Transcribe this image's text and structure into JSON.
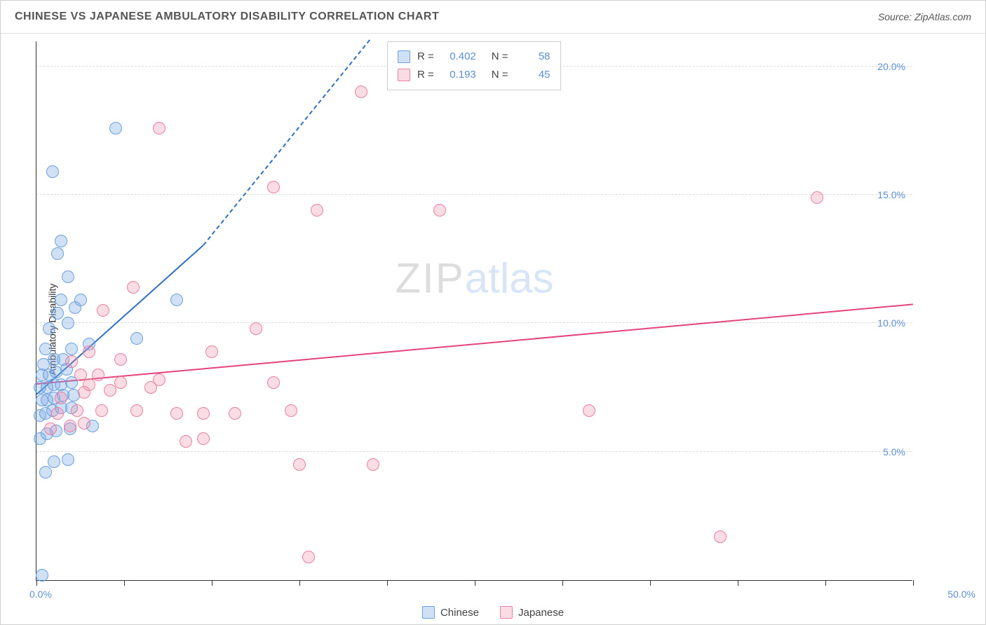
{
  "title": "CHINESE VS JAPANESE AMBULATORY DISABILITY CORRELATION CHART",
  "source": "Source: ZipAtlas.com",
  "ylabel": "Ambulatory Disability",
  "watermark": {
    "part1": "ZIP",
    "part2": "atlas"
  },
  "chart": {
    "type": "scatter",
    "xlim": [
      0,
      50
    ],
    "ylim": [
      0,
      21
    ],
    "yticks": [
      5,
      10,
      15,
      20
    ],
    "ytick_labels": [
      "5.0%",
      "10.0%",
      "15.0%",
      "20.0%"
    ],
    "xticks": [
      0,
      5,
      10,
      15,
      20,
      25,
      30,
      35,
      40,
      45,
      50
    ],
    "xlabel_first": "0.0%",
    "xlabel_last": "50.0%",
    "background_color": "#ffffff",
    "grid_color": "#dddddd",
    "axis_color": "#333333",
    "tick_label_color": "#5b8fd6",
    "point_radius": 9,
    "series": [
      {
        "name": "Chinese",
        "fill_color": "rgba(120,170,230,0.35)",
        "stroke_color": "#6aa0dd",
        "trend_color": "#2f6fc4",
        "trend": {
          "x1": 0,
          "y1": 7.2,
          "x2": 9.5,
          "y2": 13.0,
          "dash_continue_to": {
            "x": 19,
            "y": 21
          }
        },
        "R": "0.402",
        "N": "58",
        "points": [
          [
            0.3,
            0.2
          ],
          [
            0.5,
            4.2
          ],
          [
            1.0,
            4.6
          ],
          [
            1.8,
            4.7
          ],
          [
            0.2,
            5.5
          ],
          [
            0.6,
            5.7
          ],
          [
            1.1,
            5.8
          ],
          [
            1.9,
            5.9
          ],
          [
            3.2,
            6.0
          ],
          [
            0.2,
            6.4
          ],
          [
            0.5,
            6.5
          ],
          [
            0.9,
            6.6
          ],
          [
            1.4,
            6.7
          ],
          [
            2.0,
            6.7
          ],
          [
            0.3,
            7.0
          ],
          [
            0.6,
            7.0
          ],
          [
            1.0,
            7.1
          ],
          [
            1.5,
            7.2
          ],
          [
            2.1,
            7.2
          ],
          [
            0.2,
            7.5
          ],
          [
            0.6,
            7.5
          ],
          [
            1.0,
            7.6
          ],
          [
            1.4,
            7.6
          ],
          [
            2.0,
            7.7
          ],
          [
            0.3,
            8.0
          ],
          [
            0.7,
            8.0
          ],
          [
            1.1,
            8.1
          ],
          [
            1.7,
            8.2
          ],
          [
            0.4,
            8.4
          ],
          [
            1.0,
            8.6
          ],
          [
            1.5,
            8.6
          ],
          [
            0.5,
            9.0
          ],
          [
            2.0,
            9.0
          ],
          [
            3.0,
            9.2
          ],
          [
            0.7,
            9.8
          ],
          [
            1.8,
            10.0
          ],
          [
            5.7,
            9.4
          ],
          [
            1.2,
            10.4
          ],
          [
            2.2,
            10.6
          ],
          [
            1.4,
            10.9
          ],
          [
            2.5,
            10.9
          ],
          [
            8.0,
            10.9
          ],
          [
            1.8,
            11.8
          ],
          [
            1.2,
            12.7
          ],
          [
            1.4,
            13.2
          ],
          [
            0.9,
            15.9
          ],
          [
            4.5,
            17.6
          ]
        ]
      },
      {
        "name": "Japanese",
        "fill_color": "rgba(240,140,170,0.30)",
        "stroke_color": "#e87fa2",
        "trend_color": "#e4447a",
        "trend": {
          "x1": 0,
          "y1": 7.6,
          "x2": 50,
          "y2": 10.7
        },
        "R": "0.193",
        "N": "45",
        "points": [
          [
            15.5,
            0.9
          ],
          [
            39.0,
            1.7
          ],
          [
            15.0,
            4.5
          ],
          [
            19.2,
            4.5
          ],
          [
            8.5,
            5.4
          ],
          [
            9.5,
            5.5
          ],
          [
            0.8,
            5.9
          ],
          [
            1.9,
            6.0
          ],
          [
            2.7,
            6.1
          ],
          [
            1.2,
            6.5
          ],
          [
            2.3,
            6.6
          ],
          [
            3.7,
            6.6
          ],
          [
            5.7,
            6.6
          ],
          [
            8.0,
            6.5
          ],
          [
            9.5,
            6.5
          ],
          [
            11.3,
            6.5
          ],
          [
            14.5,
            6.6
          ],
          [
            31.5,
            6.6
          ],
          [
            1.4,
            7.1
          ],
          [
            2.7,
            7.3
          ],
          [
            4.2,
            7.4
          ],
          [
            6.5,
            7.5
          ],
          [
            3.0,
            7.6
          ],
          [
            4.8,
            7.7
          ],
          [
            7.0,
            7.8
          ],
          [
            13.5,
            7.7
          ],
          [
            2.5,
            8.0
          ],
          [
            3.5,
            8.0
          ],
          [
            2.0,
            8.5
          ],
          [
            4.8,
            8.6
          ],
          [
            3.0,
            8.9
          ],
          [
            10.0,
            8.9
          ],
          [
            12.5,
            9.8
          ],
          [
            3.8,
            10.5
          ],
          [
            5.5,
            11.4
          ],
          [
            16.0,
            14.4
          ],
          [
            23.0,
            14.4
          ],
          [
            44.5,
            14.9
          ],
          [
            13.5,
            15.3
          ],
          [
            7.0,
            17.6
          ],
          [
            18.5,
            19.0
          ]
        ]
      }
    ]
  },
  "correl_box": {
    "R_label": "R =",
    "N_label": "N ="
  },
  "legend_labels": [
    "Chinese",
    "Japanese"
  ]
}
